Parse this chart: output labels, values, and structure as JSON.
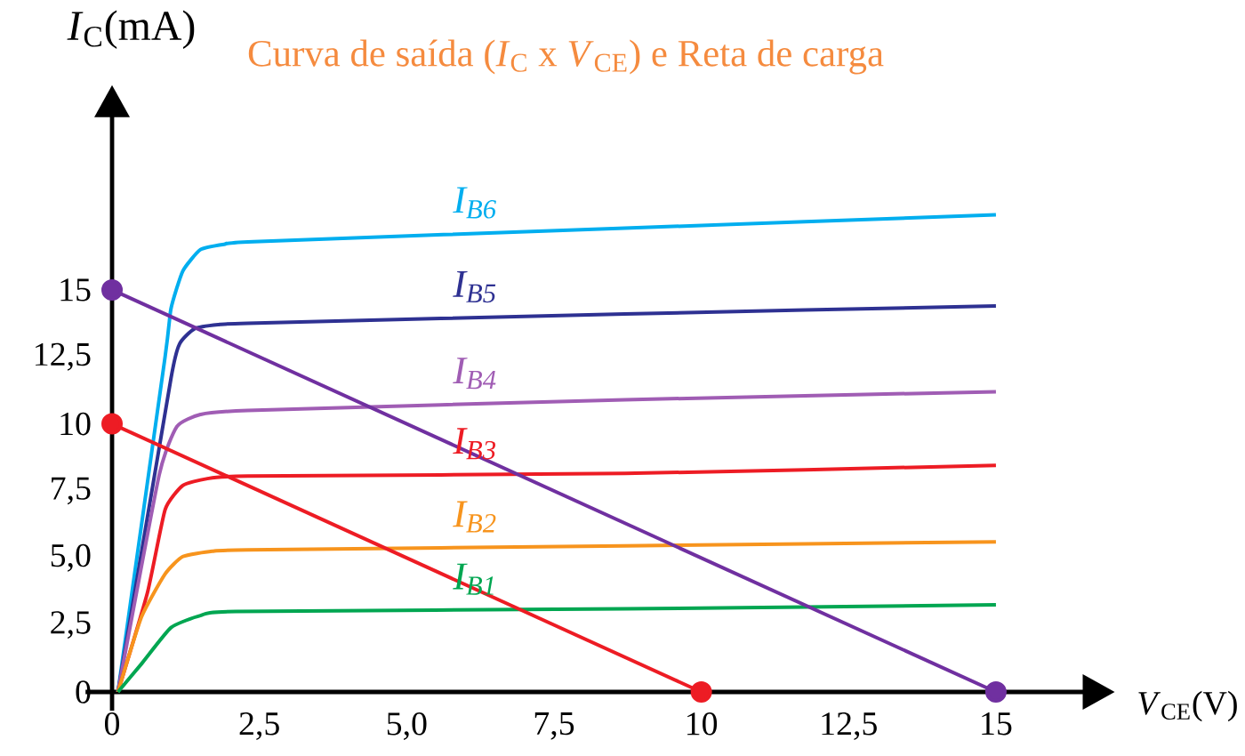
{
  "chart_data": {
    "type": "line",
    "title": "Curva de saída (*I*$_{C}$ x *V*$_{CE}$) e Reta de carga",
    "xlabel": "*V*$_{CE}$(V)",
    "ylabel": "*I*$_{C}$(mA)",
    "xlim": [
      -0.45,
      16.5
    ],
    "ylim": [
      -0.7,
      21.5
    ],
    "xticks": [
      0,
      {
        "value": 2.5,
        "label": "2,5"
      },
      {
        "value": 5,
        "label": "5,0"
      },
      {
        "value": 7.5,
        "label": "7,5"
      },
      10,
      {
        "value": 12.5,
        "label": "12,5"
      },
      15
    ],
    "yticks": [
      0,
      {
        "value": 2.5,
        "label": "2,5"
      },
      {
        "value": 5,
        "label": "5,0"
      },
      {
        "value": 7.5,
        "label": "7,5"
      },
      10,
      {
        "value": 12.5,
        "label": "12,5"
      },
      15
    ],
    "series": [
      {
        "name": "I$_{B6}$",
        "color": "#00aeef",
        "x": [
          0.1,
          0.9,
          1.0,
          1.2,
          1.5,
          1.9,
          2.4,
          8.7,
          15.0
        ],
        "values": [
          0,
          12.5,
          14.3,
          15.7,
          16.5,
          16.7,
          16.8,
          17.3,
          17.8
        ]
      },
      {
        "name": "I$_{B5}$",
        "color": "#2e3192",
        "x": [
          0.1,
          1.0,
          1.15,
          1.4,
          1.8,
          2.3,
          8.7,
          15.0
        ],
        "values": [
          0,
          11.7,
          13.0,
          13.55,
          13.7,
          13.75,
          14.1,
          14.4
        ]
      },
      {
        "name": "I$_{B4}$",
        "color": "#a05db4",
        "x": [
          0.1,
          0.8,
          1.1,
          1.5,
          2.3,
          8.7,
          15.0
        ],
        "values": [
          0,
          8.1,
          9.9,
          10.35,
          10.5,
          10.9,
          11.2
        ]
      },
      {
        "name": "I$_{B3}$",
        "color": "#ed1c24",
        "x": [
          0.1,
          0.6,
          0.9,
          1.2,
          1.6,
          2.3,
          8.7,
          15.0
        ],
        "values": [
          0,
          3.7,
          6.8,
          7.7,
          7.95,
          8.05,
          8.15,
          8.45
        ]
      },
      {
        "name": "I$_{B2}$",
        "color": "#f7941d",
        "x": [
          0.1,
          0.5,
          0.9,
          1.2,
          1.7,
          2.3,
          8.7,
          15.0
        ],
        "values": [
          0,
          2.8,
          4.4,
          5.05,
          5.25,
          5.3,
          5.45,
          5.6
        ]
      },
      {
        "name": "I$_{B1}$",
        "color": "#00a651",
        "x": [
          0.1,
          0.5,
          1.0,
          1.5,
          2.1,
          8.7,
          15.0
        ],
        "values": [
          0,
          1.05,
          2.4,
          2.85,
          3.0,
          3.1,
          3.25
        ]
      },
      {
        "color": "#ed1c24",
        "marker": "circle",
        "x": [
          0,
          10
        ],
        "values": [
          10,
          0
        ]
      },
      {
        "color": "#7030a0",
        "marker": "circle",
        "x": [
          0,
          15
        ],
        "values": [
          15,
          0
        ]
      }
    ]
  }
}
